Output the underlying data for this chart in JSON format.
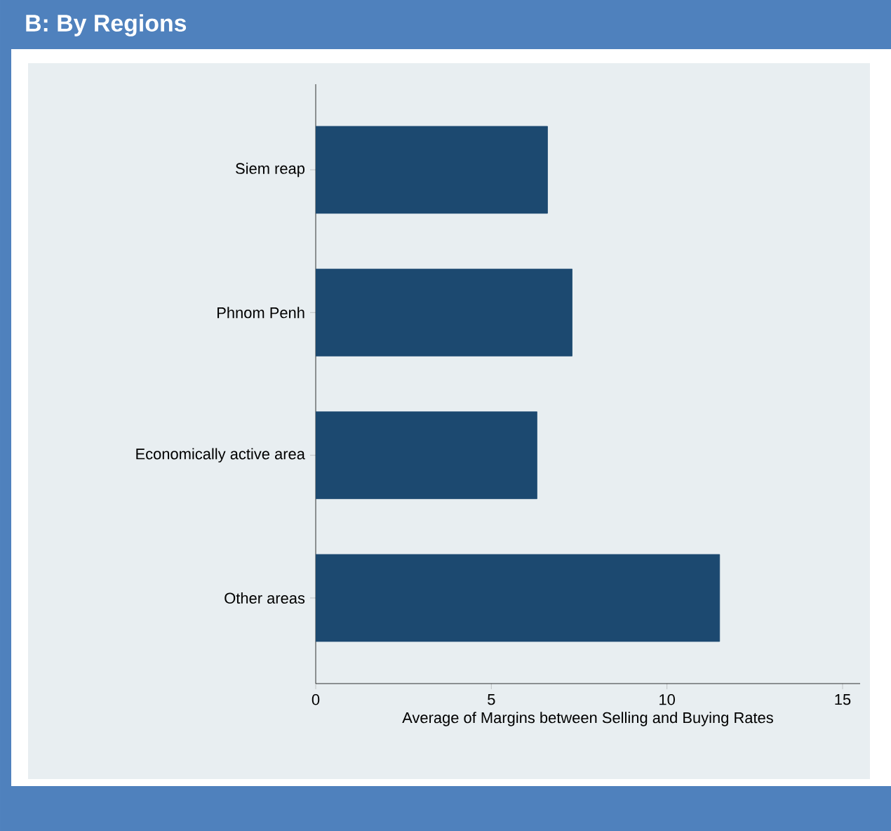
{
  "chart_data": {
    "type": "bar",
    "orientation": "horizontal",
    "title": "B: By Regions",
    "categories": [
      "Siem reap",
      "Phnom Penh",
      "Economically active area",
      "Other areas"
    ],
    "values": [
      6.6,
      7.3,
      6.3,
      11.5
    ],
    "color": "#1c4970",
    "xlim": [
      0,
      15.5
    ],
    "xticks": [
      0,
      5,
      10,
      15
    ],
    "xlabel": "Average of Margins between Selling and Buying Rates"
  }
}
